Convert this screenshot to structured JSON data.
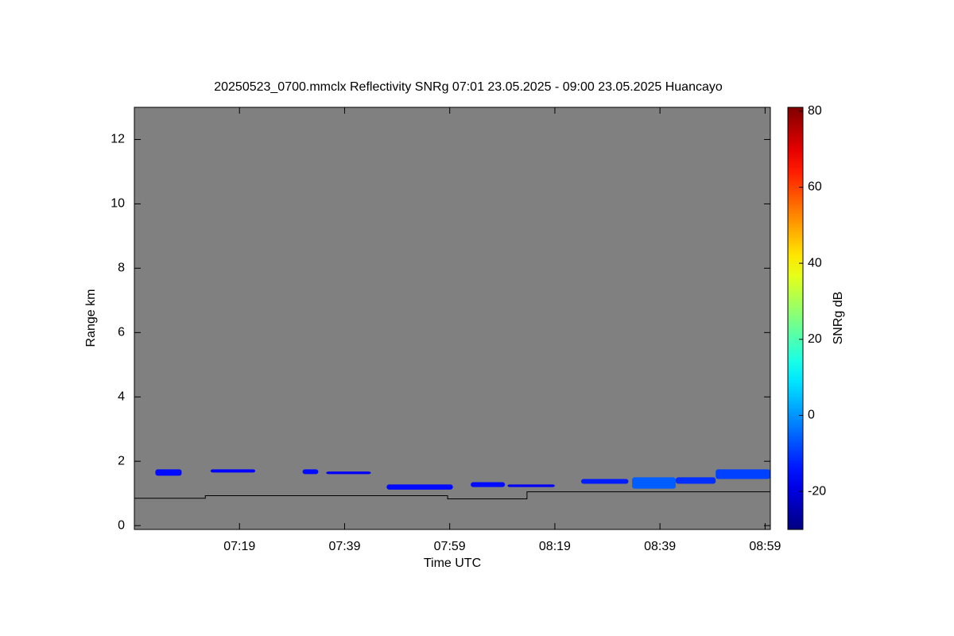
{
  "chart_data": {
    "type": "heatmap",
    "title": "20250523_0700.mmclx Reflectivity SNRg   07:01 23.05.2025 - 09:00 23.05.2025 Huancayo",
    "xlabel": "Time UTC",
    "ylabel": "Range km",
    "background_color": "#808080",
    "xlim": [
      419,
      540
    ],
    "xticks": [
      {
        "value": 439,
        "label": "07:19"
      },
      {
        "value": 459,
        "label": "07:39"
      },
      {
        "value": 479,
        "label": "07:59"
      },
      {
        "value": 499,
        "label": "08:19"
      },
      {
        "value": 519,
        "label": "08:39"
      },
      {
        "value": 539,
        "label": "08:59"
      }
    ],
    "ylim": [
      -0.12,
      13
    ],
    "yticks": [
      0,
      2,
      4,
      6,
      8,
      10,
      12
    ],
    "colorbar": {
      "label": "SNRg dB",
      "colormap": "jet",
      "lim": [
        -30,
        81
      ],
      "ticks": [
        -20,
        0,
        20,
        40,
        60,
        80
      ]
    },
    "cells": [
      {
        "x": [
          423,
          428
        ],
        "y": [
          1.55,
          1.75
        ],
        "value": -15
      },
      {
        "x": [
          433.5,
          442
        ],
        "y": [
          1.65,
          1.75
        ],
        "value": -16
      },
      {
        "x": [
          451,
          454
        ],
        "y": [
          1.6,
          1.75
        ],
        "value": -15
      },
      {
        "x": [
          455.5,
          464
        ],
        "y": [
          1.6,
          1.68
        ],
        "value": -17
      },
      {
        "x": [
          467,
          479.6
        ],
        "y": [
          1.12,
          1.28
        ],
        "value": -15
      },
      {
        "x": [
          483,
          489.5
        ],
        "y": [
          1.2,
          1.35
        ],
        "value": -15
      },
      {
        "x": [
          490,
          499
        ],
        "y": [
          1.2,
          1.28
        ],
        "value": -17
      },
      {
        "x": [
          504,
          513
        ],
        "y": [
          1.3,
          1.45
        ],
        "value": -13
      },
      {
        "x": [
          513.7,
          522
        ],
        "y": [
          1.15,
          1.5
        ],
        "value": -6
      },
      {
        "x": [
          522,
          529.6
        ],
        "y": [
          1.3,
          1.5
        ],
        "value": -11
      },
      {
        "x": [
          529.6,
          540
        ],
        "y": [
          1.45,
          1.75
        ],
        "value": -9
      }
    ],
    "line": {
      "color": "#000000",
      "x": [
        419,
        432.5,
        432.5,
        478.6,
        478.6,
        493.7,
        493.7,
        540
      ],
      "y": [
        0.85,
        0.85,
        0.93,
        0.93,
        0.83,
        0.83,
        1.05,
        1.05
      ]
    }
  }
}
